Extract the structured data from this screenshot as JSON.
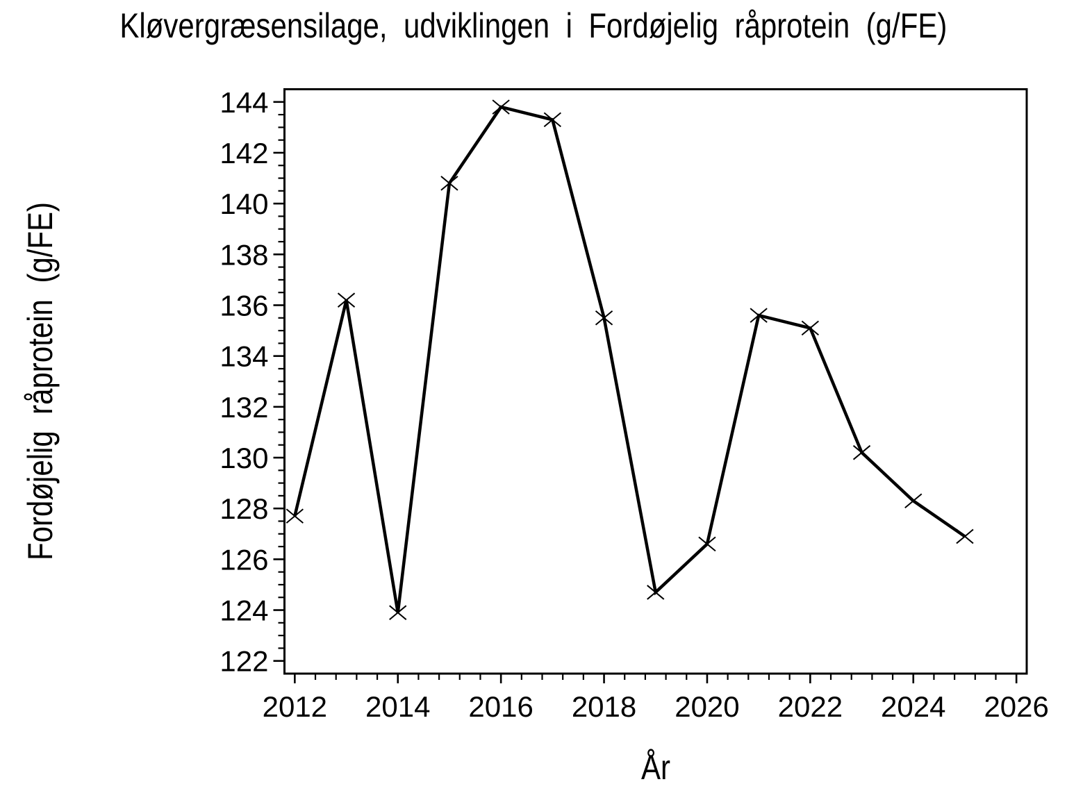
{
  "page": {
    "background": "#ffffff",
    "foreground": "#000000"
  },
  "chart_data": {
    "type": "line",
    "title": "Kløvergræsensilage, udviklingen i Fordøjelig råprotein (g/FE)",
    "xlabel": "År",
    "ylabel": "Fordøjelig råprotein (g/FE)",
    "x": [
      2012,
      2013,
      2014,
      2015,
      2016,
      2017,
      2018,
      2019,
      2020,
      2021,
      2022,
      2023,
      2024,
      2025
    ],
    "y": [
      127.7,
      136.2,
      123.9,
      140.8,
      143.8,
      143.3,
      135.5,
      124.7,
      126.6,
      135.6,
      135.1,
      130.2,
      128.3,
      126.9
    ],
    "xlim": [
      2011.8,
      2026.2
    ],
    "ylim": [
      121.5,
      144.5
    ],
    "x_ticks": [
      2012,
      2014,
      2016,
      2018,
      2020,
      2022,
      2024,
      2026
    ],
    "y_ticks": [
      122,
      124,
      126,
      128,
      130,
      132,
      134,
      136,
      138,
      140,
      142,
      144
    ],
    "x_minor_step": 0.4,
    "y_minor_step": 0.5,
    "grid": false,
    "legend": "none",
    "frame": true,
    "marker": "x",
    "line_color": "#000000",
    "background": "#ffffff"
  }
}
